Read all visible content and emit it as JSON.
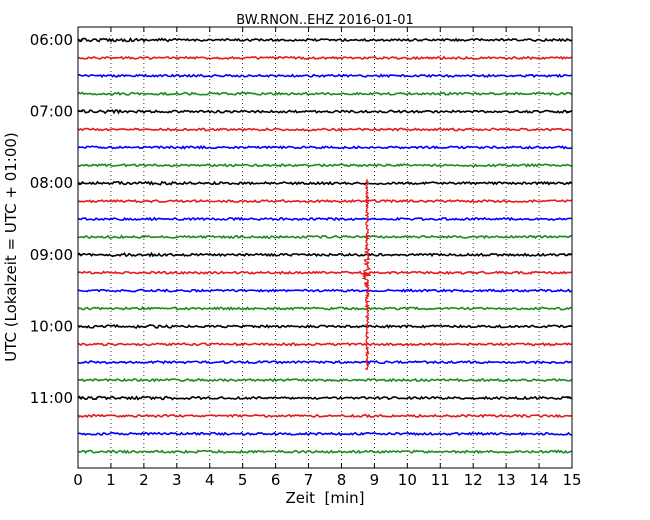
{
  "chart_data": {
    "type": "line",
    "chart_kind": "dayplot-seismogram",
    "title": "BW.RNON..EHZ 2016-01-01",
    "xlabel": "Zeit  [min]",
    "ylabel": "UTC (Lokalzeit = UTC + 01:00)",
    "xlim": [
      0,
      15
    ],
    "x_ticks": [
      0,
      1,
      2,
      3,
      4,
      5,
      6,
      7,
      8,
      9,
      10,
      11,
      12,
      13,
      14,
      15
    ],
    "grid": "vertical dotted",
    "y_tick_labels": [
      "06:00",
      "07:00",
      "08:00",
      "09:00",
      "10:00",
      "11:00"
    ],
    "row_start_times": [
      "06:00",
      "06:15",
      "06:30",
      "06:45",
      "07:00",
      "07:15",
      "07:30",
      "07:45",
      "08:00",
      "08:15",
      "08:30",
      "08:45",
      "09:00",
      "09:15",
      "09:30",
      "09:45",
      "10:00",
      "10:15",
      "10:30",
      "10:45",
      "11:00",
      "11:15",
      "11:30",
      "11:45"
    ],
    "color_cycle": [
      "#000000",
      "#e41a1c",
      "#0000ff",
      "#1a8c1a"
    ],
    "event": {
      "minute": 8.78,
      "peak_row": "09:15",
      "extent_rows": [
        "08:00",
        "10:30"
      ]
    }
  }
}
